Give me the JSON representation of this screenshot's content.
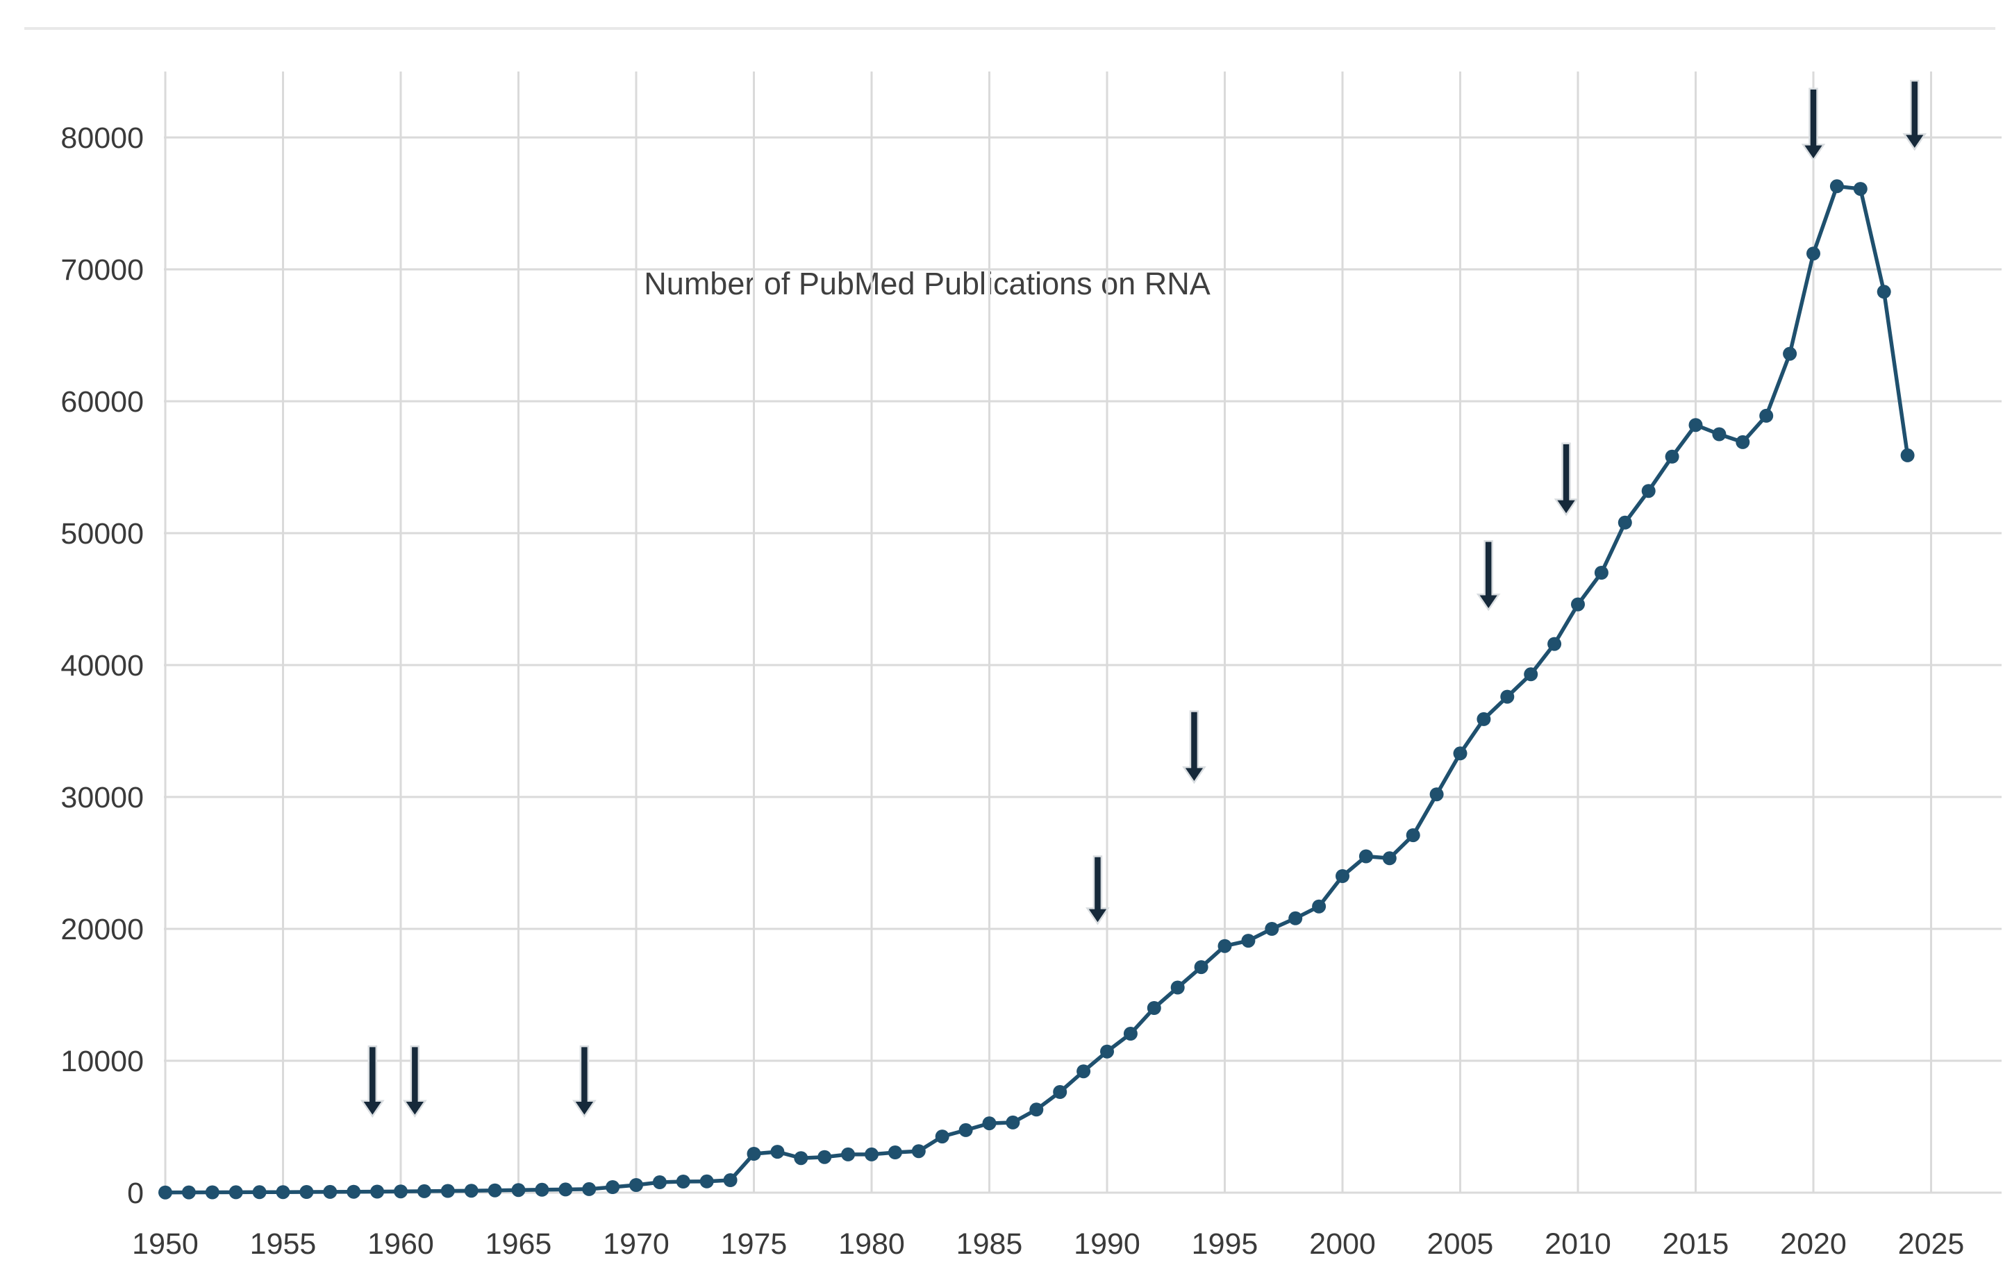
{
  "page": {
    "background_color": "#ffffff",
    "divider_color": "#e9e9e9"
  },
  "chart_data": {
    "type": "line",
    "title": "Number of PubMed Publications on RNA",
    "xlabel": "",
    "ylabel": "",
    "grid": true,
    "legend": "none",
    "xlim": [
      1950,
      2025.7
    ],
    "ylim": [
      0,
      85000
    ],
    "x_ticks": [
      1950,
      1955,
      1960,
      1965,
      1970,
      1975,
      1980,
      1985,
      1990,
      1995,
      2000,
      2005,
      2010,
      2015,
      2020,
      2025
    ],
    "y_ticks": [
      0,
      10000,
      20000,
      30000,
      40000,
      50000,
      60000,
      70000,
      80000
    ],
    "line_color": "#1f506e",
    "marker_color": "#1f506e",
    "arrow_color": "#16293a",
    "arrow_outline_color": "#dadee1",
    "grid_color": "#dadada",
    "tick_label_color": "#3a3a3a",
    "title_color": "#3f3f3f",
    "x": [
      1950,
      1951,
      1952,
      1953,
      1954,
      1955,
      1956,
      1957,
      1958,
      1959,
      1960,
      1961,
      1962,
      1963,
      1964,
      1965,
      1966,
      1967,
      1968,
      1969,
      1970,
      1971,
      1972,
      1973,
      1974,
      1975,
      1976,
      1977,
      1978,
      1979,
      1980,
      1981,
      1982,
      1983,
      1984,
      1985,
      1986,
      1987,
      1988,
      1989,
      1990,
      1991,
      1992,
      1993,
      1994,
      1995,
      1996,
      1997,
      1998,
      1999,
      2000,
      2001,
      2002,
      2003,
      2004,
      2005,
      2006,
      2007,
      2008,
      2009,
      2010,
      2011,
      2012,
      2013,
      2014,
      2015,
      2016,
      2017,
      2018,
      2019,
      2020,
      2021,
      2022,
      2023,
      2024
    ],
    "values": [
      15,
      20,
      25,
      30,
      35,
      40,
      50,
      60,
      70,
      80,
      95,
      110,
      130,
      150,
      175,
      200,
      220,
      240,
      270,
      420,
      580,
      790,
      840,
      850,
      950,
      2950,
      3100,
      2620,
      2700,
      2900,
      2900,
      3050,
      3150,
      4260,
      4740,
      5260,
      5320,
      6300,
      7630,
      9200,
      10700,
      12050,
      14000,
      15550,
      17100,
      18700,
      19100,
      20000,
      20800,
      21700,
      24000,
      25500,
      25350,
      27100,
      30200,
      33300,
      35900,
      37600,
      39300,
      41600,
      44600,
      47000,
      50800,
      53200,
      55800,
      58200,
      57500,
      56900,
      58900,
      63600,
      71200,
      76300,
      76100,
      68300,
      55900
    ],
    "annotations": [
      {
        "x": 1958.8,
        "y_from": 11100,
        "y_to": 5800
      },
      {
        "x": 1960.6,
        "y_from": 11100,
        "y_to": 5800
      },
      {
        "x": 1967.8,
        "y_from": 11100,
        "y_to": 5800
      },
      {
        "x": 1989.6,
        "y_from": 25500,
        "y_to": 20400
      },
      {
        "x": 1993.7,
        "y_from": 36500,
        "y_to": 31100
      },
      {
        "x": 2006.2,
        "y_from": 49400,
        "y_to": 44200
      },
      {
        "x": 2009.5,
        "y_from": 56800,
        "y_to": 51400
      },
      {
        "x": 2020.0,
        "y_from": 83700,
        "y_to": 78300
      },
      {
        "x": 2024.3,
        "y_from": 84300,
        "y_to": 79100
      }
    ]
  }
}
